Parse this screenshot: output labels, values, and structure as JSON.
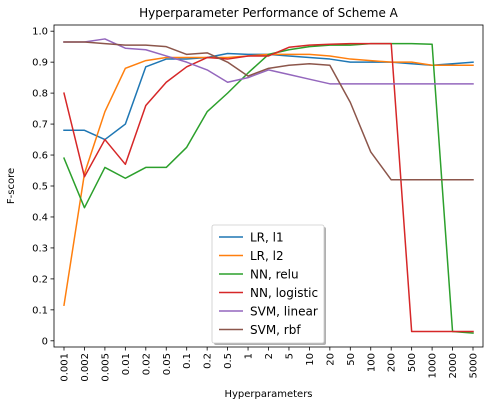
{
  "chart_data": {
    "type": "line",
    "title": "Hyperparameter Performance of Scheme A",
    "xlabel": "Hyperparameters",
    "ylabel": "F-score",
    "categories": [
      "0.001",
      "0.002",
      "0.005",
      "0.01",
      "0.02",
      "0.05",
      "0.1",
      "0.2",
      "0.5",
      "1",
      "2",
      "5",
      "10",
      "20",
      "50",
      "100",
      "200",
      "500",
      "1000",
      "2000",
      "5000"
    ],
    "ylim": [
      -0.02,
      1.02
    ],
    "yticks": [
      "0",
      "0.1",
      "0.2",
      "0.3",
      "0.4",
      "0.5",
      "0.6",
      "0.7",
      "0.8",
      "0.9",
      "1.0"
    ],
    "grid": false,
    "legend_position": "lower center",
    "series": [
      {
        "name": "LR, l1",
        "color": "#1f77b4",
        "values": [
          0.68,
          0.68,
          0.65,
          0.7,
          0.885,
          0.91,
          0.91,
          0.915,
          0.928,
          0.925,
          0.925,
          0.92,
          0.915,
          0.91,
          0.9,
          0.9,
          0.9,
          0.895,
          0.89,
          0.895,
          0.9
        ]
      },
      {
        "name": "LR, l2",
        "color": "#ff7f0e",
        "values": [
          0.115,
          0.54,
          0.74,
          0.88,
          0.905,
          0.915,
          0.915,
          0.915,
          0.915,
          0.92,
          0.925,
          0.925,
          0.925,
          0.92,
          0.91,
          0.905,
          0.9,
          0.9,
          0.89,
          0.89,
          0.89
        ]
      },
      {
        "name": "NN, relu",
        "color": "#2ca02c",
        "values": [
          0.59,
          0.43,
          0.56,
          0.525,
          0.56,
          0.56,
          0.625,
          0.74,
          0.8,
          0.865,
          0.925,
          0.94,
          0.95,
          0.955,
          0.955,
          0.96,
          0.96,
          0.96,
          0.958,
          0.03,
          0.025
        ]
      },
      {
        "name": "NN, logistic",
        "color": "#d62728",
        "values": [
          0.8,
          0.53,
          0.65,
          0.57,
          0.76,
          0.835,
          0.885,
          0.915,
          0.91,
          0.92,
          0.92,
          0.948,
          0.955,
          0.958,
          0.96,
          0.96,
          0.96,
          0.03,
          0.03,
          0.03,
          0.03
        ]
      },
      {
        "name": "SVM, linear",
        "color": "#9467bd",
        "values": [
          0.965,
          0.965,
          0.975,
          0.945,
          0.94,
          0.92,
          0.9,
          0.875,
          0.835,
          0.85,
          0.875,
          0.86,
          0.845,
          0.83,
          0.83,
          0.83,
          0.83,
          0.83,
          0.83,
          0.83,
          0.83
        ]
      },
      {
        "name": "SVM, rbf",
        "color": "#8c564b",
        "values": [
          0.965,
          0.965,
          0.96,
          0.955,
          0.955,
          0.95,
          0.925,
          0.93,
          0.9,
          0.855,
          0.88,
          0.89,
          0.895,
          0.89,
          0.77,
          0.61,
          0.52,
          0.52,
          0.52,
          0.52,
          0.52
        ]
      }
    ]
  }
}
